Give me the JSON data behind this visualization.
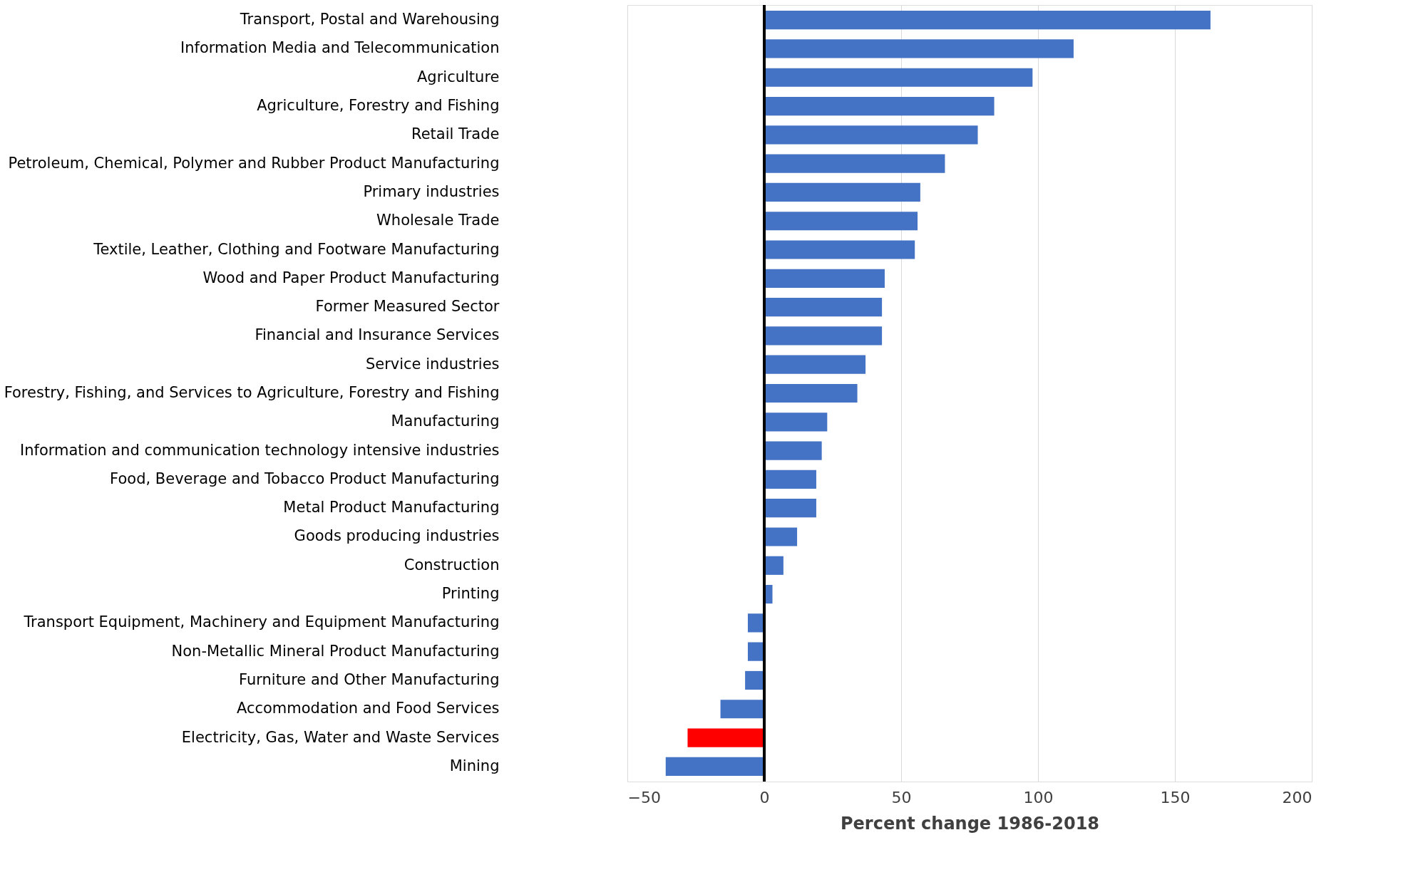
{
  "chart_data": {
    "type": "bar",
    "orientation": "horizontal",
    "xlabel": "Percent change 1986-2018",
    "categories": [
      "Transport, Postal and Warehousing",
      "Information Media and Telecommunication",
      "Agriculture",
      "Agriculture, Forestry and Fishing",
      "Retail Trade",
      "Petroleum, Chemical, Polymer and Rubber Product Manufacturing",
      "Primary industries",
      "Wholesale Trade",
      "Textile, Leather, Clothing and Footware Manufacturing",
      "Wood and Paper Product Manufacturing",
      "Former Measured Sector",
      "Financial and Insurance Services",
      "Service industries",
      "Forestry, Fishing, and Services to Agriculture, Forestry and Fishing",
      "Manufacturing",
      "Information and communication technology intensive industries",
      "Food, Beverage and Tobacco Product Manufacturing",
      "Metal Product Manufacturing",
      "Goods producing industries",
      "Construction",
      "Printing",
      "Transport Equipment, Machinery and Equipment Manufacturing",
      "Non-Metallic Mineral Product Manufacturing",
      "Furniture and Other Manufacturing",
      "Accommodation and Food Services",
      "Electricity, Gas, Water and Waste Services",
      "Mining"
    ],
    "values": [
      163,
      113,
      98,
      84,
      78,
      66,
      57,
      56,
      55,
      44,
      43,
      43,
      37,
      34,
      23,
      21,
      19,
      19,
      12,
      7,
      3,
      -6,
      -6,
      -7,
      -16,
      -28,
      -36
    ],
    "colors": [
      "#4472c4",
      "#4472c4",
      "#4472c4",
      "#4472c4",
      "#4472c4",
      "#4472c4",
      "#4472c4",
      "#4472c4",
      "#4472c4",
      "#4472c4",
      "#4472c4",
      "#4472c4",
      "#4472c4",
      "#4472c4",
      "#4472c4",
      "#4472c4",
      "#4472c4",
      "#4472c4",
      "#4472c4",
      "#4472c4",
      "#4472c4",
      "#4472c4",
      "#4472c4",
      "#4472c4",
      "#4472c4",
      "#ff0000",
      "#4472c4"
    ],
    "xlim": [
      -50,
      200
    ],
    "xticks": [
      -50,
      0,
      50,
      100,
      150,
      200
    ],
    "grid": "x",
    "ref_lines": [
      {
        "axis": "x",
        "value": 0,
        "color": "#000000"
      }
    ]
  }
}
